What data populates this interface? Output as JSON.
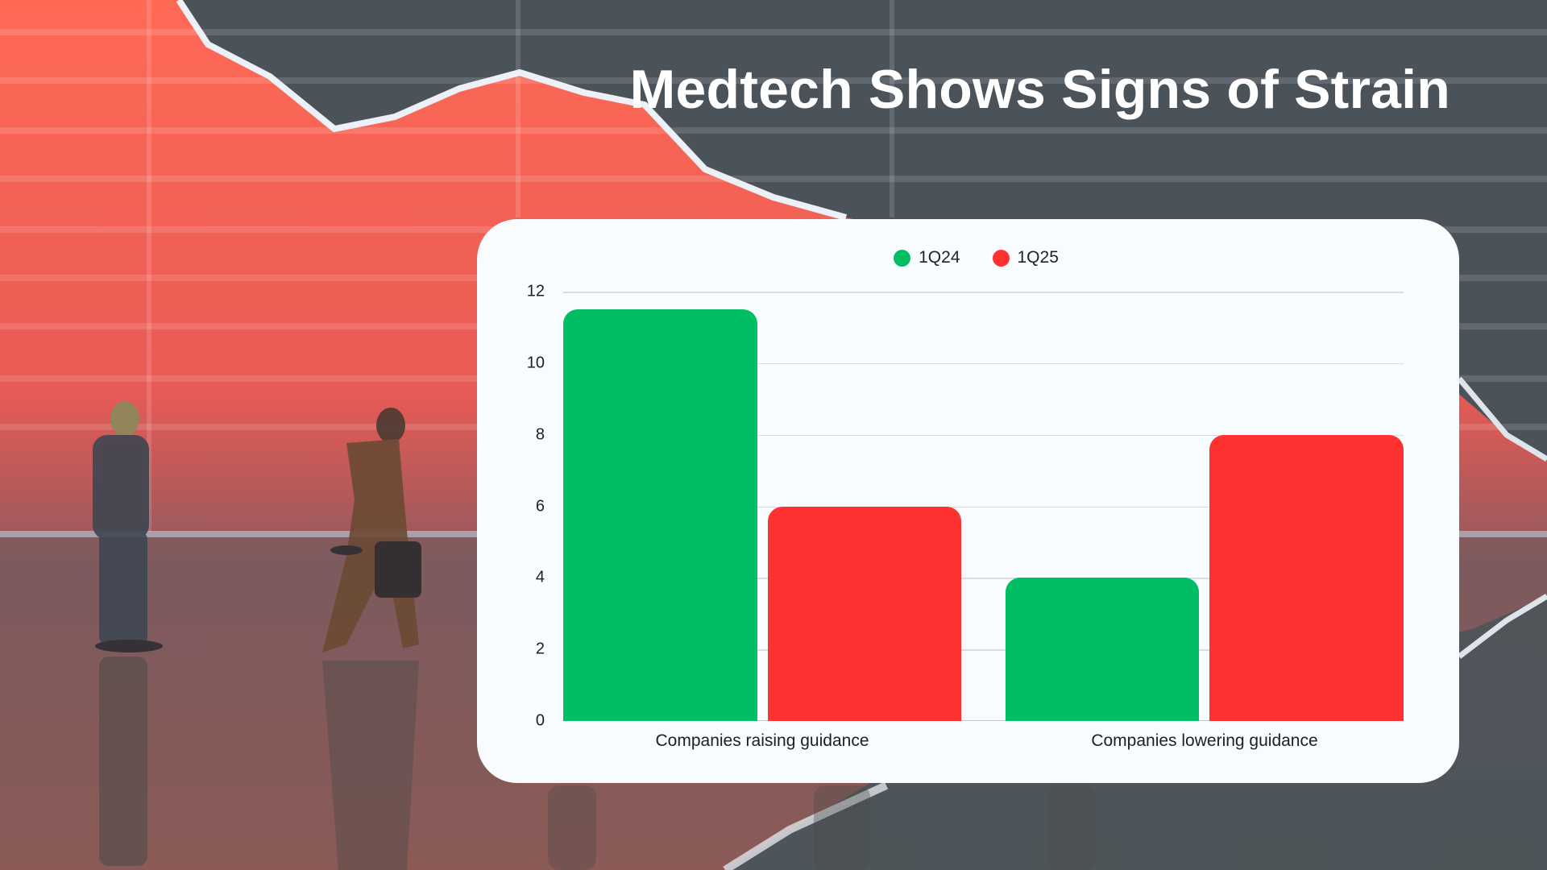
{
  "title": "Medtech Shows Signs of Strain",
  "colors": {
    "series_1Q24": "#00be63",
    "series_1Q25": "#ff3232",
    "card_bg": "#f8fcfe",
    "title_text": "#ffffff"
  },
  "legend": [
    {
      "label": "1Q24",
      "color": "#00be63"
    },
    {
      "label": "1Q25",
      "color": "#ff3232"
    }
  ],
  "y_ticks": [
    "0",
    "2",
    "4",
    "6",
    "8",
    "10",
    "12"
  ],
  "categories": [
    "Companies raising guidance",
    "Companies lowering guidance"
  ],
  "chart_data": {
    "type": "bar",
    "title": "Medtech Shows Signs of Strain",
    "categories": [
      "Companies raising guidance",
      "Companies lowering guidance"
    ],
    "series": [
      {
        "name": "1Q24",
        "color": "#00be63",
        "values": [
          11.5,
          4
        ]
      },
      {
        "name": "1Q25",
        "color": "#ff3232",
        "values": [
          6,
          8
        ]
      }
    ],
    "xlabel": "",
    "ylabel": "",
    "ylim": [
      0,
      12
    ],
    "yticks": [
      0,
      2,
      4,
      6,
      8,
      10,
      12
    ],
    "grid": true,
    "legend_position": "top-center"
  }
}
